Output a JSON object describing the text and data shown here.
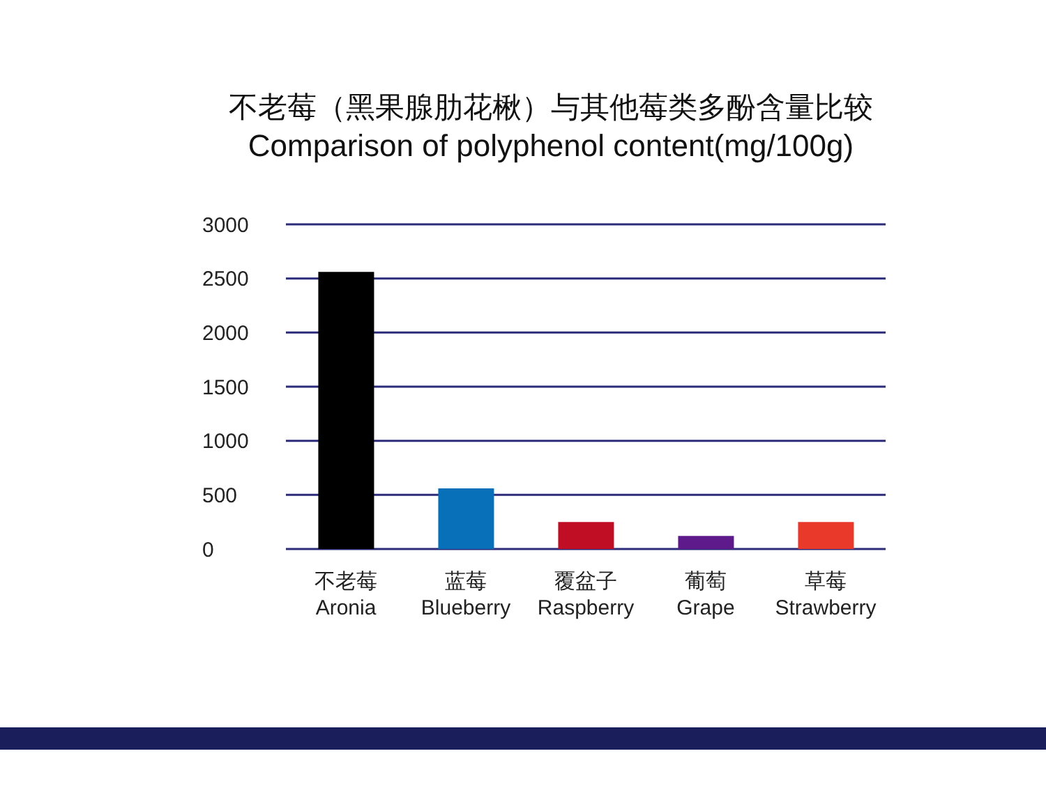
{
  "chart_data": {
    "type": "bar",
    "title": "不老莓（黑果腺肋花楸）与其他莓类多酚含量比较",
    "subtitle": "Comparison of polyphenol content(mg/100g)",
    "categories": [
      "不老莓\nAronia",
      "蓝莓\nBlueberry",
      "覆盆子\nRaspberry",
      "葡萄\nGrape",
      "草莓\nStrawberry"
    ],
    "values": [
      2560,
      560,
      250,
      120,
      250
    ],
    "colors": [
      "#000000",
      "#0770b8",
      "#c00f24",
      "#5e1a8a",
      "#e8392a"
    ],
    "ylim": [
      0,
      3000
    ],
    "yticks": [
      0,
      500,
      1000,
      1500,
      2000,
      2500,
      3000
    ],
    "grid": "y"
  }
}
